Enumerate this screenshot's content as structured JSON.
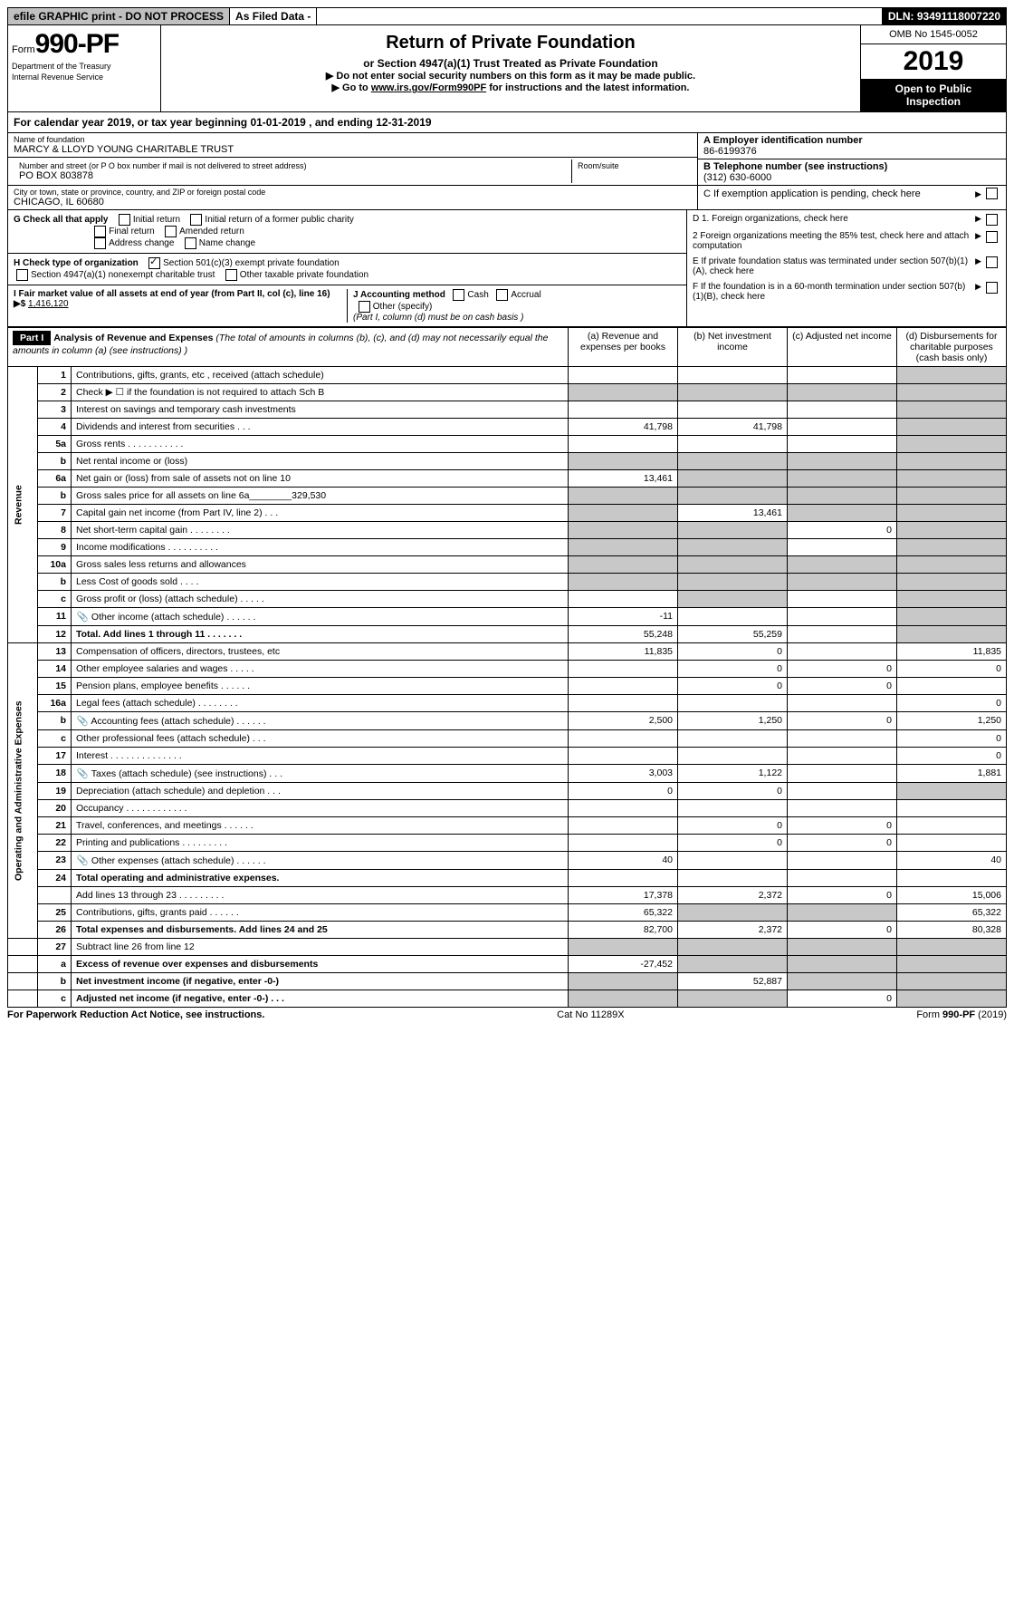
{
  "topbar": {
    "efile": "efile GRAPHIC print - DO NOT PROCESS",
    "asfiled": "As Filed Data -",
    "dln": "DLN: 93491118007220"
  },
  "header": {
    "form_prefix": "Form",
    "form_no": "990-PF",
    "dept1": "Department of the Treasury",
    "dept2": "Internal Revenue Service",
    "title": "Return of Private Foundation",
    "subtitle": "or Section 4947(a)(1) Trust Treated as Private Foundation",
    "note1": "▶ Do not enter social security numbers on this form as it may be made public.",
    "note2_pre": "▶ Go to ",
    "note2_link": "www.irs.gov/Form990PF",
    "note2_post": " for instructions and the latest information.",
    "omb": "OMB No 1545-0052",
    "year": "2019",
    "openpub1": "Open to Public",
    "openpub2": "Inspection"
  },
  "cal": {
    "text_pre": "For calendar year 2019, or tax year beginning ",
    "begin": "01-01-2019",
    "mid": " , and ending ",
    "end": "12-31-2019"
  },
  "name": {
    "label": "Name of foundation",
    "value": "MARCY & LLOYD YOUNG CHARITABLE TRUST",
    "addr_label": "Number and street (or P O  box number if mail is not delivered to street address)",
    "addr_value": "PO BOX 803878",
    "room_label": "Room/suite",
    "city_label": "City or town, state or province, country, and ZIP or foreign postal code",
    "city_value": "CHICAGO, IL  60680",
    "A_label": "A Employer identification number",
    "A_value": "86-6199376",
    "B_label": "B Telephone number (see instructions)",
    "B_value": "(312) 630-6000",
    "C_label": "C If exemption application is pending, check here"
  },
  "checks": {
    "G_label": "G Check all that apply",
    "g1": "Initial return",
    "g2": "Initial return of a former public charity",
    "g3": "Final return",
    "g4": "Amended return",
    "g5": "Address change",
    "g6": "Name change",
    "H_label": "H Check type of organization",
    "h1": "Section 501(c)(3) exempt private foundation",
    "h2": "Section 4947(a)(1) nonexempt charitable trust",
    "h3": "Other taxable private foundation",
    "I_label": "I Fair market value of all assets at end of year (from Part II, col  (c), line 16) ▶$",
    "I_value": "1,416,120",
    "J_label": "J Accounting method",
    "j1": "Cash",
    "j2": "Accrual",
    "j3": "Other (specify)",
    "J_note": "(Part I, column (d) must be on cash basis )",
    "D1": "D 1. Foreign organizations, check here",
    "D2": "2  Foreign organizations meeting the 85% test, check here and attach computation",
    "E": "E  If private foundation status was terminated under section 507(b)(1)(A), check here",
    "F": "F  If the foundation is in a 60-month termination under section 507(b)(1)(B), check here"
  },
  "part1": {
    "label": "Part I",
    "title": "Analysis of Revenue and Expenses",
    "title_note": "(The total of amounts in columns (b), (c), and (d) may not necessarily equal the amounts in column (a) (see instructions) )",
    "col_a": "(a)  Revenue and expenses per books",
    "col_b": "(b)  Net investment income",
    "col_c": "(c)  Adjusted net income",
    "col_d": "(d)  Disbursements for charitable purposes (cash basis only)",
    "revenue_label": "Revenue",
    "expenses_label": "Operating and Administrative Expenses"
  },
  "rows": [
    {
      "n": "1",
      "d": "Contributions, gifts, grants, etc , received (attach schedule)",
      "a": "",
      "b": "",
      "c": "",
      "dd": "",
      "shade_d": true
    },
    {
      "n": "2",
      "d": "Check ▶ ☐ if the foundation is not required to attach Sch  B",
      "a": "",
      "b": "",
      "c": "",
      "dd": "",
      "shade_all": true
    },
    {
      "n": "3",
      "d": "Interest on savings and temporary cash investments",
      "a": "",
      "b": "",
      "c": "",
      "dd": "",
      "shade_d": true
    },
    {
      "n": "4",
      "d": "Dividends and interest from securities   .  .  .",
      "a": "41,798",
      "b": "41,798",
      "c": "",
      "dd": "",
      "shade_d": true
    },
    {
      "n": "5a",
      "d": "Gross rents   .  .  .  .  .  .  .  .  .  .  .",
      "a": "",
      "b": "",
      "c": "",
      "dd": "",
      "shade_d": true
    },
    {
      "n": "b",
      "d": "Net rental income or (loss)  ",
      "a": "",
      "b": "",
      "c": "",
      "dd": "",
      "shade_all": true
    },
    {
      "n": "6a",
      "d": "Net gain or (loss) from sale of assets not on line 10",
      "a": "13,461",
      "b": "",
      "c": "",
      "dd": "",
      "shade_bcd": true
    },
    {
      "n": "b",
      "d": "Gross sales price for all assets on line 6a________329,530",
      "a": "",
      "b": "",
      "c": "",
      "dd": "",
      "shade_all": true
    },
    {
      "n": "7",
      "d": "Capital gain net income (from Part IV, line 2)   .  .  .",
      "a": "",
      "b": "13,461",
      "c": "",
      "dd": "",
      "shade_a": true,
      "shade_cd": true
    },
    {
      "n": "8",
      "d": "Net short-term capital gain  .  .  .  .  .  .  .  .",
      "a": "",
      "b": "",
      "c": "0",
      "dd": "",
      "shade_ab": true,
      "shade_d": true
    },
    {
      "n": "9",
      "d": "Income modifications .  .  .  .  .  .  .  .  .  .",
      "a": "",
      "b": "",
      "c": "",
      "dd": "",
      "shade_ab": true,
      "shade_d": true
    },
    {
      "n": "10a",
      "d": "Gross sales less returns and allowances",
      "a": "",
      "b": "",
      "c": "",
      "dd": "",
      "shade_all": true
    },
    {
      "n": "b",
      "d": "Less  Cost of goods sold    .  .  .  .",
      "a": "",
      "b": "",
      "c": "",
      "dd": "",
      "shade_all": true
    },
    {
      "n": "c",
      "d": "Gross profit or (loss) (attach schedule)    .  .  .  .  .",
      "a": "",
      "b": "",
      "c": "",
      "dd": "",
      "shade_b": true,
      "shade_d": true
    },
    {
      "n": "11",
      "d": "Other income (attach schedule)    .  .  .  .  .  .",
      "icon": true,
      "a": "-11",
      "b": "",
      "c": "",
      "dd": "",
      "shade_d": true
    },
    {
      "n": "12",
      "d": "Total. Add lines 1 through 11    .  .  .  .  .  .  .",
      "bold": true,
      "a": "55,248",
      "b": "55,259",
      "c": "",
      "dd": "",
      "shade_d": true
    }
  ],
  "exp_rows": [
    {
      "n": "13",
      "d": "Compensation of officers, directors, trustees, etc",
      "a": "11,835",
      "b": "0",
      "c": "",
      "dd": "11,835"
    },
    {
      "n": "14",
      "d": "Other employee salaries and wages   .  .  .  .  .",
      "a": "",
      "b": "0",
      "c": "0",
      "dd": "0"
    },
    {
      "n": "15",
      "d": "Pension plans, employee benefits  .  .  .  .  .  .",
      "a": "",
      "b": "0",
      "c": "0",
      "dd": ""
    },
    {
      "n": "16a",
      "d": "Legal fees (attach schedule) .  .  .  .  .  .  .  .",
      "a": "",
      "b": "",
      "c": "",
      "dd": "0"
    },
    {
      "n": "b",
      "d": "Accounting fees (attach schedule) .  .  .  .  .  .",
      "icon": true,
      "a": "2,500",
      "b": "1,250",
      "c": "0",
      "dd": "1,250"
    },
    {
      "n": "c",
      "d": "Other professional fees (attach schedule)    .  .  .",
      "a": "",
      "b": "",
      "c": "",
      "dd": "0"
    },
    {
      "n": "17",
      "d": "Interest  .  .  .  .  .  .  .  .  .  .  .  .  .  .",
      "a": "",
      "b": "",
      "c": "",
      "dd": "0"
    },
    {
      "n": "18",
      "d": "Taxes (attach schedule) (see instructions)    .  .  .",
      "icon": true,
      "a": "3,003",
      "b": "1,122",
      "c": "",
      "dd": "1,881"
    },
    {
      "n": "19",
      "d": "Depreciation (attach schedule) and depletion   .  .  .",
      "a": "0",
      "b": "0",
      "c": "",
      "dd": "",
      "shade_d": true
    },
    {
      "n": "20",
      "d": "Occupancy   .  .  .  .  .  .  .  .  .  .  .  .",
      "a": "",
      "b": "",
      "c": "",
      "dd": ""
    },
    {
      "n": "21",
      "d": "Travel, conferences, and meetings .  .  .  .  .  .",
      "a": "",
      "b": "0",
      "c": "0",
      "dd": ""
    },
    {
      "n": "22",
      "d": "Printing and publications .  .  .  .  .  .  .  .  .",
      "a": "",
      "b": "0",
      "c": "0",
      "dd": ""
    },
    {
      "n": "23",
      "d": "Other expenses (attach schedule) .  .  .  .  .  .",
      "icon": true,
      "a": "40",
      "b": "",
      "c": "",
      "dd": "40"
    },
    {
      "n": "24",
      "d": "Total operating and administrative expenses.",
      "bold": true,
      "a": "",
      "b": "",
      "c": "",
      "dd": "",
      "contline": "Add lines 13 through 23  .  .  .  .  .  .  .  .  .",
      "ca": "17,378",
      "cb": "2,372",
      "cc": "0",
      "cdd": "15,006"
    },
    {
      "n": "25",
      "d": "Contributions, gifts, grants paid    .  .  .  .  .  .",
      "a": "65,322",
      "b": "",
      "c": "",
      "dd": "65,322",
      "shade_bc": true
    },
    {
      "n": "26",
      "d": "Total expenses and disbursements. Add lines 24 and 25",
      "bold": true,
      "a": "82,700",
      "b": "2,372",
      "c": "0",
      "dd": "80,328"
    }
  ],
  "net_rows": [
    {
      "n": "27",
      "d": "Subtract line 26 from line 12",
      "a": "",
      "b": "",
      "c": "",
      "dd": "",
      "shade_all": true
    },
    {
      "n": "a",
      "d": "Excess of revenue over expenses and disbursements",
      "bold": true,
      "a": "-27,452",
      "b": "",
      "c": "",
      "dd": "",
      "shade_bcd": true
    },
    {
      "n": "b",
      "d": "Net investment income (if negative, enter -0-)",
      "bold": true,
      "a": "",
      "b": "52,887",
      "c": "",
      "dd": "",
      "shade_a": true,
      "shade_cd": true
    },
    {
      "n": "c",
      "d": "Adjusted net income (if negative, enter -0-)  .  .  .",
      "bold": true,
      "a": "",
      "b": "",
      "c": "0",
      "dd": "",
      "shade_ab": true,
      "shade_d": true
    }
  ],
  "footer": {
    "left": "For Paperwork Reduction Act Notice, see instructions.",
    "mid": "Cat  No  11289X",
    "right": "Form 990-PF (2019)"
  }
}
